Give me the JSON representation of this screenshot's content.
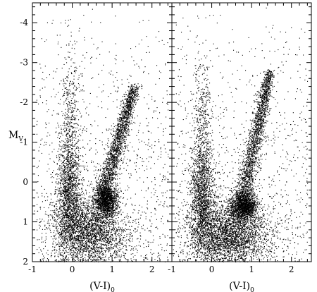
{
  "chart_data": [
    {
      "type": "scatter",
      "panel": "left",
      "xlabel": "(V-I)",
      "xlabel_sub": "0",
      "ylabel": "M",
      "ylabel_sub": "V",
      "xlim": [
        -1.0,
        2.5
      ],
      "ylim": [
        2.0,
        -4.5
      ],
      "y_inverted": true,
      "grid": false,
      "xticks": [
        "-1",
        "0",
        "1",
        "2"
      ],
      "yticks": [
        "-4",
        "-3",
        "-2",
        "-1",
        "0",
        "1",
        "2"
      ],
      "point_color": "#000000",
      "density_components": [
        {
          "feature": "red clump",
          "x": 0.85,
          "y": 0.45,
          "spread_x": 0.14,
          "spread_y": 0.2,
          "share": 0.16
        },
        {
          "feature": "main sequence",
          "x": 0.45,
          "y": 1.25,
          "spread_x": 0.45,
          "spread_y": 0.45,
          "share": 0.3
        },
        {
          "feature": "blue sequence",
          "x": -0.1,
          "y": 0.3,
          "spread_x": 0.15,
          "spread_y": 0.7,
          "share": 0.16
        },
        {
          "feature": "blue plume",
          "x": -0.05,
          "y": -1.5,
          "spread_x": 0.12,
          "spread_y": 1.0,
          "share": 0.05
        },
        {
          "feature": "red giant branch",
          "x_range": [
            0.75,
            1.55
          ],
          "y_range": [
            0.3,
            -2.4
          ],
          "spread_x": 0.12,
          "share": 0.2
        },
        {
          "feature": "field",
          "x_range": [
            -0.9,
            2.4
          ],
          "y_range": [
            -4.4,
            2.0
          ],
          "share": 0.13
        }
      ],
      "n_points": 9000
    },
    {
      "type": "scatter",
      "panel": "right",
      "xlabel": "(V-I)",
      "xlabel_sub": "0",
      "xlim": [
        -1.0,
        2.5
      ],
      "ylim": [
        2.0,
        -4.5
      ],
      "y_inverted": true,
      "grid": false,
      "xticks": [
        "-1",
        "0",
        "1",
        "2"
      ],
      "yticks": [],
      "point_color": "#000000",
      "density_components": [
        {
          "feature": "red clump",
          "x": 0.8,
          "y": 0.6,
          "spread_x": 0.16,
          "spread_y": 0.18,
          "share": 0.16
        },
        {
          "feature": "main sequence",
          "x": 0.4,
          "y": 1.35,
          "spread_x": 0.5,
          "spread_y": 0.4,
          "share": 0.32
        },
        {
          "feature": "blue sequence",
          "x": -0.25,
          "y": 0.4,
          "spread_x": 0.15,
          "spread_y": 0.7,
          "share": 0.16
        },
        {
          "feature": "blue plume",
          "x": -0.25,
          "y": -1.4,
          "spread_x": 0.12,
          "spread_y": 1.0,
          "share": 0.05
        },
        {
          "feature": "red giant branch",
          "x_range": [
            0.75,
            1.45
          ],
          "y_range": [
            0.5,
            -2.8
          ],
          "spread_x": 0.12,
          "share": 0.2
        },
        {
          "feature": "field",
          "x_range": [
            -0.9,
            2.4
          ],
          "y_range": [
            -4.4,
            2.0
          ],
          "share": 0.11
        }
      ],
      "n_points": 9500
    }
  ]
}
